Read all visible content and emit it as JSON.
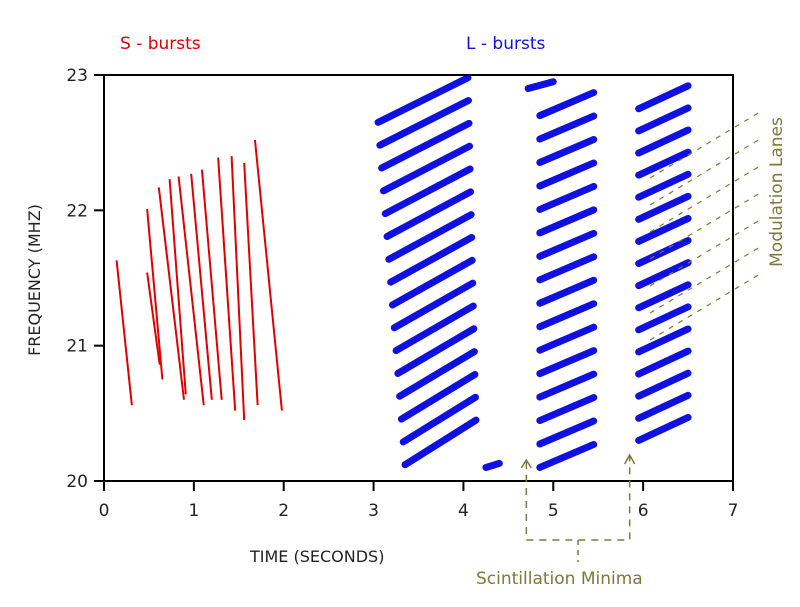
{
  "chart_data": {
    "type": "scatter",
    "title": "",
    "xlabel": "TIME (SECONDS)",
    "ylabel": "FREQUENCY (MHZ)",
    "xlim": [
      0,
      7
    ],
    "ylim": [
      20,
      23
    ],
    "xticks": [
      "0",
      "1",
      "2",
      "3",
      "4",
      "5",
      "6",
      "7"
    ],
    "yticks": [
      "20",
      "21",
      "22",
      "23"
    ],
    "grid": false,
    "series": [
      {
        "name": "S - bursts",
        "color": "#e00000",
        "segments": [
          [
            0.14,
            21.63,
            0.31,
            20.56
          ],
          [
            0.48,
            22.01,
            0.65,
            20.75
          ],
          [
            0.48,
            21.54,
            0.62,
            20.86
          ],
          [
            0.61,
            22.17,
            0.89,
            20.6
          ],
          [
            0.73,
            22.23,
            0.91,
            20.64
          ],
          [
            0.83,
            22.25,
            1.11,
            20.56
          ],
          [
            0.97,
            22.27,
            1.2,
            20.6
          ],
          [
            1.09,
            22.3,
            1.31,
            20.6
          ],
          [
            1.27,
            22.39,
            1.46,
            20.52
          ],
          [
            1.42,
            22.4,
            1.56,
            20.45
          ],
          [
            1.56,
            22.35,
            1.71,
            20.56
          ],
          [
            1.68,
            22.52,
            1.98,
            20.52
          ]
        ]
      },
      {
        "name": "L - bursts",
        "color": "#1010e0",
        "groups": [
          {
            "t_start": 3.05,
            "t_end": 4.05,
            "f_top": 22.65,
            "f_bottom": 20.12,
            "count": 16,
            "rise": 0.33
          },
          {
            "t_start": 4.85,
            "t_end": 5.45,
            "f_top": 22.7,
            "f_bottom": 20.1,
            "count": 16,
            "rise": 0.17
          },
          {
            "t_start": 5.95,
            "t_end": 6.5,
            "f_top": 22.75,
            "f_bottom": 20.3,
            "count": 16,
            "rise": 0.17
          }
        ],
        "extra_blobs": [
          [
            4.25,
            20.1,
            4.4,
            20.13
          ],
          [
            4.72,
            22.9,
            5.0,
            22.95
          ]
        ]
      }
    ],
    "legend": [
      {
        "label": "S - bursts",
        "color": "#e00000",
        "position": "top-left"
      },
      {
        "label": "L - bursts",
        "color": "#1010e0",
        "position": "top-center"
      }
    ],
    "annotations": [
      {
        "text": "Modulation Lanes",
        "color": "#7a7a3a",
        "position": "right"
      },
      {
        "text": "Scintillation Minima",
        "color": "#7a7a3a",
        "position": "bottom",
        "times": [
          4.7,
          5.85
        ]
      }
    ]
  }
}
